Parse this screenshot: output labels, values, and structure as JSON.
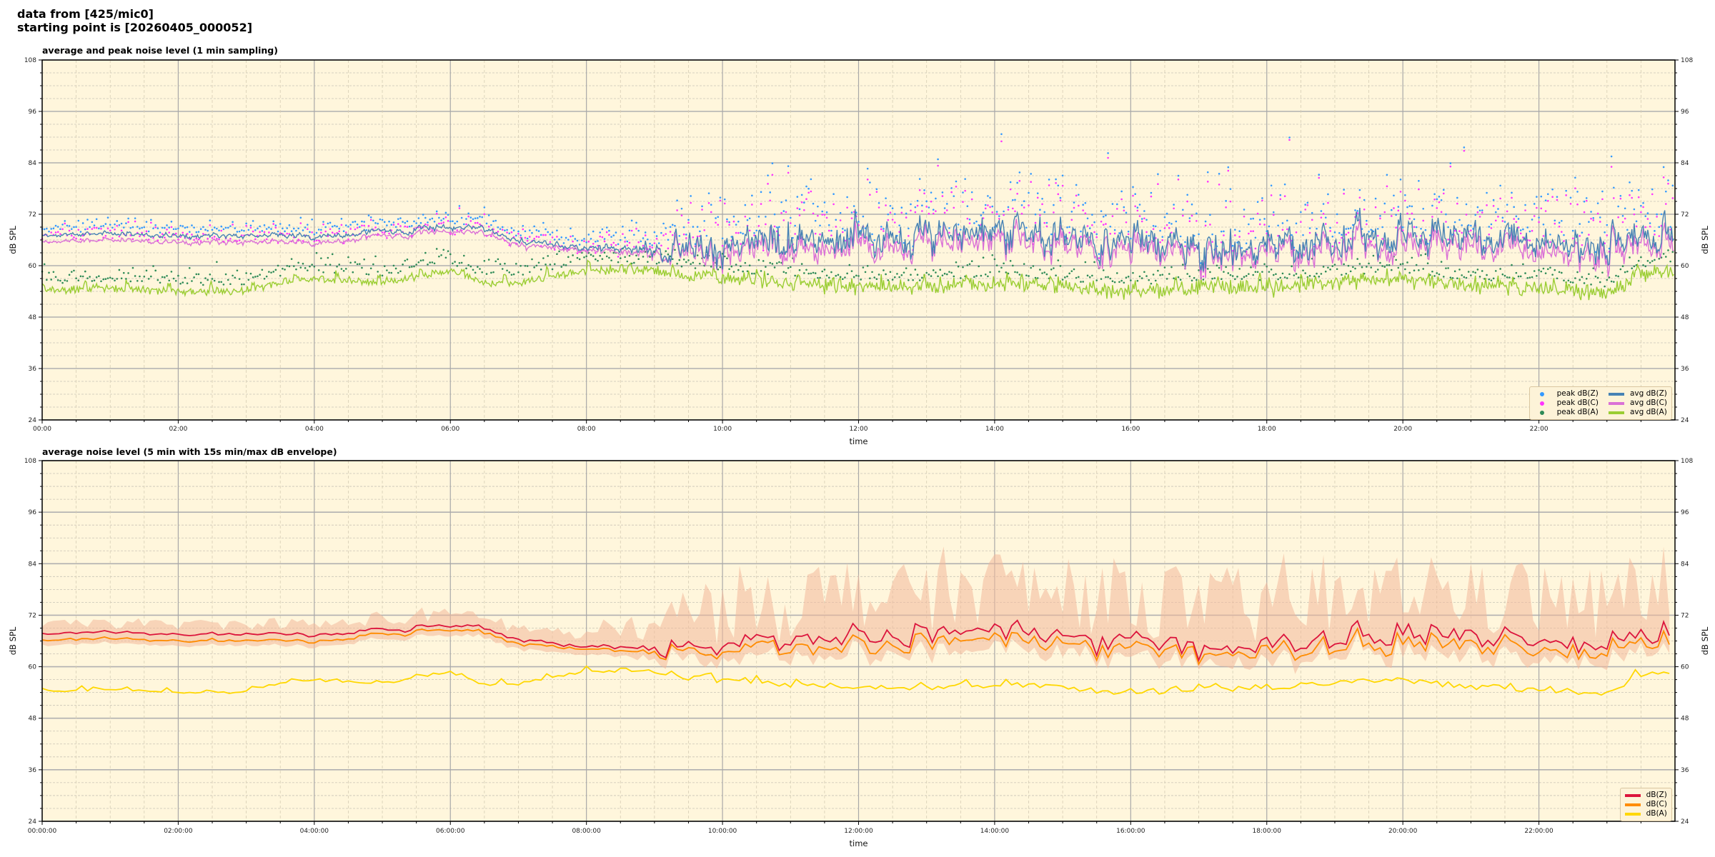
{
  "header": {
    "line1": "data from [425/mic0]",
    "line2": "starting point is [20260405_000052]"
  },
  "colors": {
    "background": "#fff6dc",
    "envelope": "#f2b89a"
  },
  "chart_data": [
    {
      "type": "line+scatter",
      "title": "average and peak noise level (1 min sampling)",
      "xlabel": "time",
      "ylabel": "dB SPL",
      "xlim_hours": [
        0,
        24
      ],
      "ylim": [
        24,
        108
      ],
      "yticks": [
        24,
        36,
        48,
        60,
        72,
        84,
        96,
        108
      ],
      "xtick_labels": [
        "00:00",
        "02:00",
        "04:00",
        "06:00",
        "08:00",
        "10:00",
        "12:00",
        "14:00",
        "16:00",
        "18:00",
        "20:00",
        "22:00"
      ],
      "grid": true,
      "legend": "bottom-right",
      "x_hours": [
        0,
        1,
        2,
        3,
        3.5,
        4,
        5,
        6,
        6.5,
        7,
        8,
        9,
        10,
        11,
        12,
        13,
        14,
        15,
        16,
        17,
        18,
        19,
        20,
        21,
        22,
        23,
        23.5,
        24
      ],
      "series": [
        {
          "name": "avg dB(Z)",
          "kind": "line",
          "color": "#4682b4",
          "values": [
            67,
            67.5,
            67,
            67,
            67,
            66.5,
            68,
            69,
            68.5,
            66,
            64,
            64,
            65,
            66,
            67,
            67,
            68,
            67,
            66,
            64,
            64,
            66,
            68,
            67,
            66,
            65,
            68,
            70
          ]
        },
        {
          "name": "avg dB(C)",
          "kind": "line",
          "color": "#da70d6",
          "values": [
            65.5,
            66,
            65.5,
            65.5,
            65.5,
            65,
            67,
            68,
            67.5,
            65,
            63.5,
            63,
            63.5,
            64,
            65,
            65,
            66,
            65,
            64,
            62.5,
            62.5,
            64,
            66,
            65,
            64,
            63,
            66,
            68
          ]
        },
        {
          "name": "avg dB(A)",
          "kind": "line",
          "color": "#9acd32",
          "values": [
            54,
            55,
            54,
            54,
            56,
            57,
            56,
            59,
            56,
            56,
            59,
            59,
            57,
            56,
            55,
            55,
            56,
            55,
            54,
            55,
            55,
            56,
            57,
            55,
            55,
            53.5,
            58,
            59
          ]
        },
        {
          "name": "peak dB(Z)",
          "kind": "scatter",
          "color": "#3399ff"
        },
        {
          "name": "peak dB(C)",
          "kind": "scatter",
          "color": "#ff33ff"
        },
        {
          "name": "peak dB(A)",
          "kind": "scatter",
          "color": "#2e8b57"
        }
      ],
      "variability_hours": [
        0,
        8,
        9,
        10,
        24
      ],
      "variability_db": [
        0.5,
        0.8,
        2,
        4,
        4
      ]
    },
    {
      "type": "line+area",
      "title": "average noise level (5 min with 15s min/max dB envelope)",
      "xlabel": "time",
      "ylabel": "dB SPL",
      "xlim_hours": [
        0,
        24
      ],
      "ylim": [
        24,
        108
      ],
      "yticks": [
        24,
        36,
        48,
        60,
        72,
        84,
        96,
        108
      ],
      "xtick_labels": [
        "00:00:00",
        "02:00:00",
        "04:00:00",
        "06:00:00",
        "08:00:00",
        "10:00:00",
        "12:00:00",
        "14:00:00",
        "16:00:00",
        "18:00:00",
        "20:00:00",
        "22:00:00"
      ],
      "grid": true,
      "legend": "bottom-right",
      "series": [
        {
          "name": "dB(Z)",
          "color": "#dc143c"
        },
        {
          "name": "dB(C)",
          "color": "#ff8c00"
        },
        {
          "name": "dB(A)",
          "color": "#ffd700"
        }
      ],
      "envelope_max_db": 88
    }
  ]
}
